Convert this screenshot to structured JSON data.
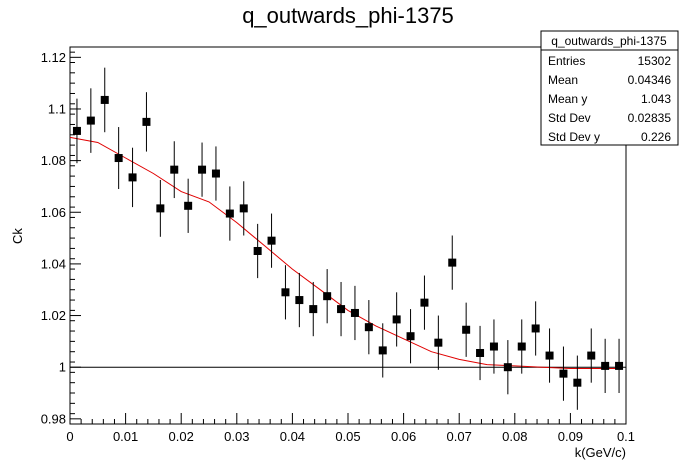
{
  "chart_data": {
    "type": "scatter",
    "title": "q_outwards_phi-1375",
    "xlabel": "k(GeV/c)",
    "ylabel": "Ck",
    "xlim": [
      0,
      0.1
    ],
    "ylim": [
      0.978,
      1.124
    ],
    "x_ticks": [
      0,
      0.01,
      0.02,
      0.03,
      0.04,
      0.05,
      0.06,
      0.07,
      0.08,
      0.09,
      0.1
    ],
    "x_tick_labels": [
      "0",
      "0.01",
      "0.02",
      "0.03",
      "0.04",
      "0.05",
      "0.06",
      "0.07",
      "0.08",
      "0.09",
      "0.1"
    ],
    "y_ticks": [
      0.98,
      1.0,
      1.02,
      1.04,
      1.06,
      1.08,
      1.1,
      1.12
    ],
    "y_tick_labels": [
      "0.98",
      "1",
      "1.02",
      "1.04",
      "1.06",
      "1.08",
      "1.1",
      "1.12"
    ],
    "reference_line_y": 1.0,
    "grid": false,
    "series": [
      {
        "kind": "points_with_errors",
        "color": "#000000",
        "points": [
          {
            "x": 0.00125,
            "y": 1.0915,
            "err": 0.0125
          },
          {
            "x": 0.00375,
            "y": 1.0955,
            "err": 0.0125
          },
          {
            "x": 0.00625,
            "y": 1.1035,
            "err": 0.0125
          },
          {
            "x": 0.00875,
            "y": 1.081,
            "err": 0.012
          },
          {
            "x": 0.01125,
            "y": 1.0735,
            "err": 0.0115
          },
          {
            "x": 0.01375,
            "y": 1.095,
            "err": 0.0115
          },
          {
            "x": 0.01625,
            "y": 1.0615,
            "err": 0.011
          },
          {
            "x": 0.01875,
            "y": 1.0765,
            "err": 0.011
          },
          {
            "x": 0.02125,
            "y": 1.0625,
            "err": 0.0105
          },
          {
            "x": 0.02375,
            "y": 1.0765,
            "err": 0.0105
          },
          {
            "x": 0.02625,
            "y": 1.075,
            "err": 0.0105
          },
          {
            "x": 0.02875,
            "y": 1.0595,
            "err": 0.0105
          },
          {
            "x": 0.03125,
            "y": 1.0615,
            "err": 0.0105
          },
          {
            "x": 0.03375,
            "y": 1.045,
            "err": 0.0105
          },
          {
            "x": 0.03625,
            "y": 1.049,
            "err": 0.0105
          },
          {
            "x": 0.03875,
            "y": 1.029,
            "err": 0.0105
          },
          {
            "x": 0.04125,
            "y": 1.026,
            "err": 0.0105
          },
          {
            "x": 0.04375,
            "y": 1.0225,
            "err": 0.0105
          },
          {
            "x": 0.04625,
            "y": 1.0275,
            "err": 0.0105
          },
          {
            "x": 0.04875,
            "y": 1.0225,
            "err": 0.0105
          },
          {
            "x": 0.05125,
            "y": 1.021,
            "err": 0.0105
          },
          {
            "x": 0.05375,
            "y": 1.0155,
            "err": 0.0105
          },
          {
            "x": 0.05625,
            "y": 1.0065,
            "err": 0.0105
          },
          {
            "x": 0.05875,
            "y": 1.0185,
            "err": 0.0105
          },
          {
            "x": 0.06125,
            "y": 1.012,
            "err": 0.0105
          },
          {
            "x": 0.06375,
            "y": 1.025,
            "err": 0.0105
          },
          {
            "x": 0.06625,
            "y": 1.0095,
            "err": 0.0105
          },
          {
            "x": 0.06875,
            "y": 1.0405,
            "err": 0.0105
          },
          {
            "x": 0.07125,
            "y": 1.0145,
            "err": 0.0105
          },
          {
            "x": 0.07375,
            "y": 1.0055,
            "err": 0.0105
          },
          {
            "x": 0.07625,
            "y": 1.008,
            "err": 0.0105
          },
          {
            "x": 0.07875,
            "y": 1.0,
            "err": 0.0105
          },
          {
            "x": 0.08125,
            "y": 1.008,
            "err": 0.0105
          },
          {
            "x": 0.08375,
            "y": 1.015,
            "err": 0.0105
          },
          {
            "x": 0.08625,
            "y": 1.0045,
            "err": 0.0105
          },
          {
            "x": 0.08875,
            "y": 0.9975,
            "err": 0.0105
          },
          {
            "x": 0.09125,
            "y": 0.994,
            "err": 0.0105
          },
          {
            "x": 0.09375,
            "y": 1.0045,
            "err": 0.0105
          },
          {
            "x": 0.09625,
            "y": 1.0005,
            "err": 0.0105
          },
          {
            "x": 0.09875,
            "y": 1.0005,
            "err": 0.0105
          }
        ]
      },
      {
        "kind": "fit_line",
        "color": "#e00000",
        "x": [
          0.0,
          0.005,
          0.01,
          0.015,
          0.02,
          0.025,
          0.03,
          0.035,
          0.04,
          0.045,
          0.05,
          0.055,
          0.06,
          0.065,
          0.07,
          0.075,
          0.08,
          0.085,
          0.09,
          0.095,
          0.099
        ],
        "y": [
          1.089,
          1.087,
          1.081,
          1.075,
          1.068,
          1.064,
          1.056,
          1.047,
          1.038,
          1.03,
          1.022,
          1.016,
          1.011,
          1.006,
          1.003,
          1.001,
          1.0005,
          1.0,
          0.9995,
          0.9995,
          0.9995
        ]
      }
    ],
    "stats_box": {
      "title": "q_outwards_phi-1375",
      "rows": [
        {
          "label": "Entries",
          "value": "15302"
        },
        {
          "label": "Mean",
          "value": "0.04346"
        },
        {
          "label": "Mean y",
          "value": "1.043"
        },
        {
          "label": "Std Dev",
          "value": "0.02835"
        },
        {
          "label": "Std Dev y",
          "value": "0.226"
        }
      ]
    }
  }
}
